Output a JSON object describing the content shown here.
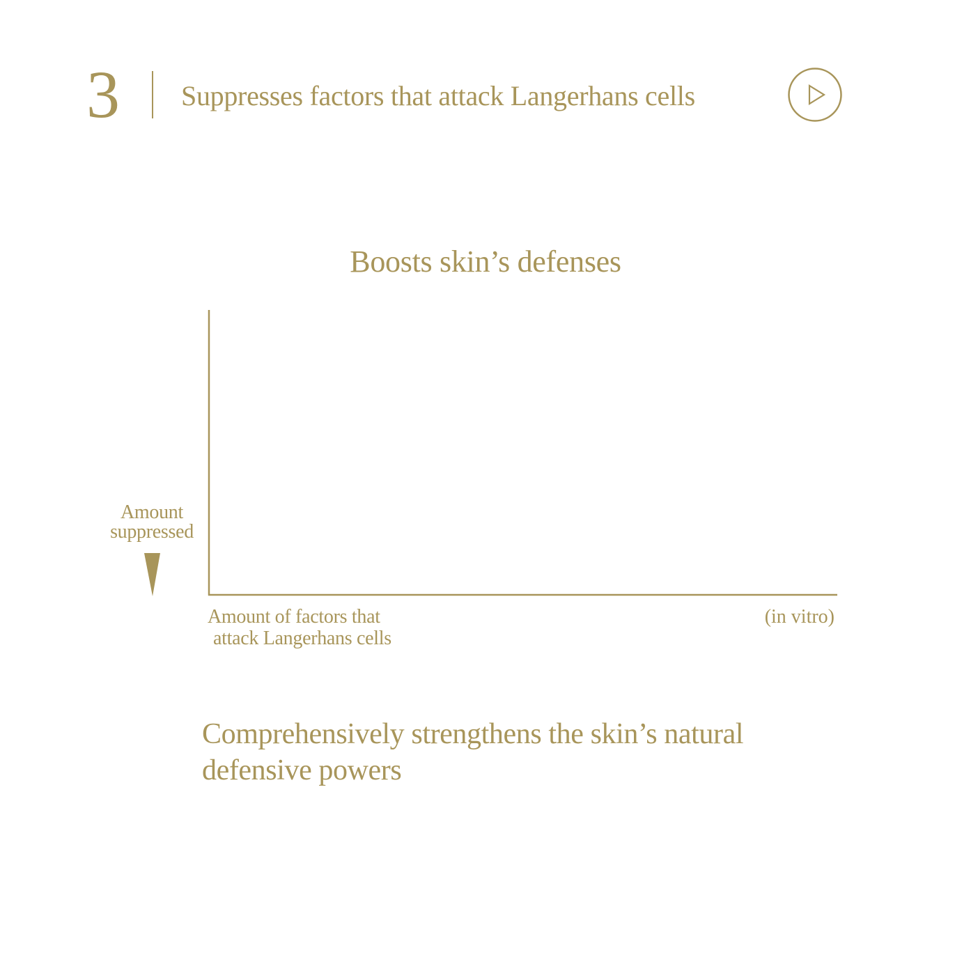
{
  "colors": {
    "accent": "#a8955a",
    "background": "#ffffff"
  },
  "header": {
    "section_number": "3",
    "heading": "Suppresses factors that attack Langerhans cells",
    "play_icon": "play-circle-icon"
  },
  "chart_data": {
    "type": "bar",
    "title": "Boosts skin’s defenses",
    "ylabel": "Amount suppressed",
    "ylabel_lines": [
      "Amount",
      "suppressed"
    ],
    "xlabel": "Amount of factors that attack Langerhans cells",
    "xlabel_lines": [
      "Amount of factors that",
      "attack Langerhans cells"
    ],
    "note": "(in vitro)",
    "categories": [],
    "series": [],
    "y_direction_icon": "down-arrow-wedge-icon",
    "grid": false
  },
  "summary": {
    "text": "Comprehensively strengthens the skin’s natural defensive powers"
  }
}
